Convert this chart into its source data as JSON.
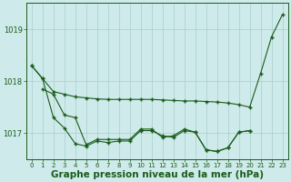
{
  "background_color": "#ceeaea",
  "grid_color": "#a8cece",
  "line_color": "#1a5c1a",
  "x_labels": [
    "0",
    "1",
    "2",
    "3",
    "4",
    "5",
    "6",
    "7",
    "8",
    "9",
    "10",
    "11",
    "12",
    "13",
    "14",
    "15",
    "16",
    "17",
    "18",
    "19",
    "20",
    "21",
    "22",
    "23"
  ],
  "hours": [
    0,
    1,
    2,
    3,
    4,
    5,
    6,
    7,
    8,
    9,
    10,
    11,
    12,
    13,
    14,
    15,
    16,
    17,
    18,
    19,
    20,
    21,
    22,
    23
  ],
  "curveA_x": [
    0,
    1,
    2,
    3,
    4,
    5,
    6,
    7,
    8,
    9,
    10,
    11,
    12,
    13,
    14,
    15,
    16,
    17,
    18,
    19,
    20,
    21,
    22,
    23
  ],
  "curveA_y": [
    1018.3,
    1018.05,
    1017.8,
    1017.75,
    1017.7,
    1017.68,
    1017.66,
    1017.65,
    1017.65,
    1017.65,
    1017.65,
    1017.65,
    1017.64,
    1017.63,
    1017.62,
    1017.62,
    1017.61,
    1017.6,
    1017.58,
    1017.55,
    1017.5,
    1018.15,
    1018.85,
    1019.28
  ],
  "curveB_x": [
    0,
    1,
    2,
    3,
    4,
    5,
    6,
    7,
    8,
    9,
    10,
    11,
    12,
    13,
    14,
    15,
    16,
    17,
    18,
    19,
    20
  ],
  "curveB_y": [
    1018.3,
    1018.05,
    1017.3,
    1017.1,
    1016.8,
    1016.75,
    1016.85,
    1016.82,
    1016.85,
    1016.85,
    1017.05,
    1017.05,
    1016.95,
    1016.92,
    1017.05,
    1017.02,
    1016.68,
    1016.65,
    1016.72,
    1017.02,
    1017.05
  ],
  "curveC_x": [
    1,
    2,
    3,
    4,
    5,
    6,
    7,
    8,
    9,
    10,
    11,
    12,
    13,
    14,
    15,
    16,
    17,
    18,
    19,
    20
  ],
  "curveC_y": [
    1017.85,
    1017.75,
    1017.35,
    1017.3,
    1016.78,
    1016.88,
    1016.88,
    1016.88,
    1016.88,
    1017.08,
    1017.08,
    1016.92,
    1016.95,
    1017.08,
    1017.02,
    1016.68,
    1016.65,
    1016.72,
    1017.02,
    1017.05
  ],
  "ylim": [
    1016.5,
    1019.5
  ],
  "yticks": [
    1017,
    1018,
    1019
  ],
  "xlabel": "Graphe pression niveau de la mer (hPa)",
  "xlabel_fontsize": 7.5
}
